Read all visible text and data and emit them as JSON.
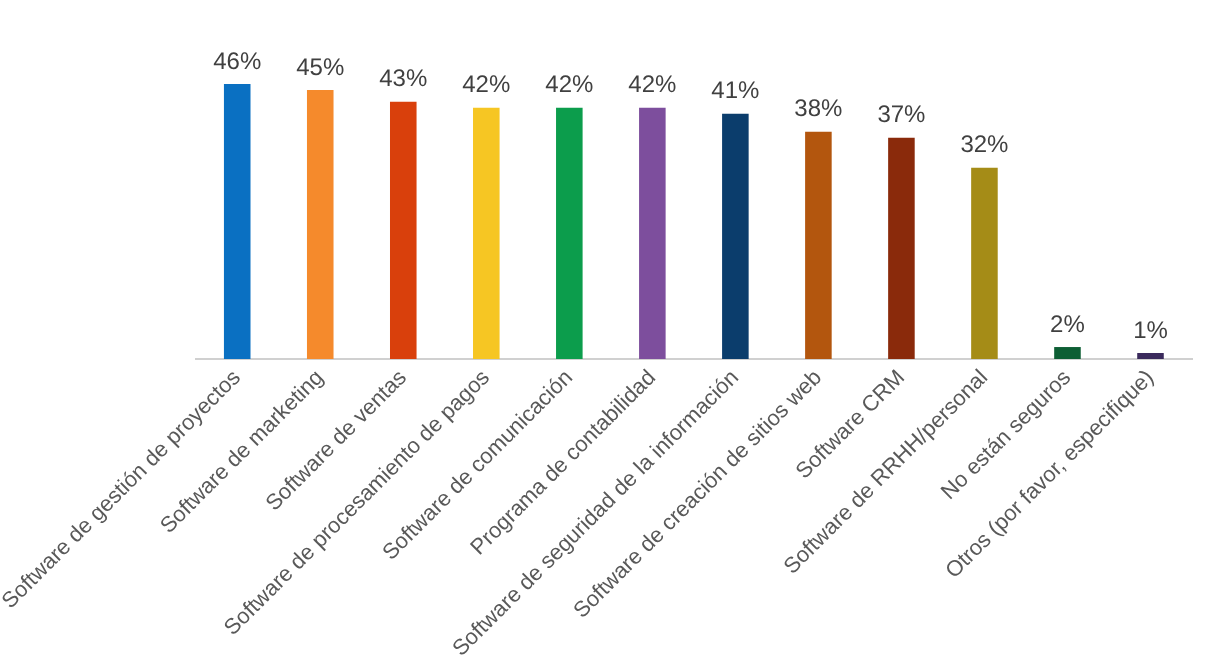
{
  "chart_data": {
    "type": "bar",
    "categories": [
      "Software de gestión de proyectos",
      "Software de marketing",
      "Software de ventas",
      "Software de procesamiento de pagos",
      "Software de comunicación",
      "Programa de contabilidad",
      "Software de seguridad de la información",
      "Software de creación de sitios web",
      "Software CRM",
      "Software de RRHH/personal",
      "No están seguros",
      "Otros (por favor, especifique)"
    ],
    "values": [
      46,
      45,
      43,
      42,
      42,
      42,
      41,
      38,
      37,
      32,
      2,
      1
    ],
    "value_labels": [
      "46%",
      "45%",
      "43%",
      "42%",
      "42%",
      "42%",
      "41%",
      "38%",
      "37%",
      "32%",
      "2%",
      "1%"
    ],
    "colors": [
      "#0a70c2",
      "#f58a2c",
      "#d9400c",
      "#f6c623",
      "#0c9d4c",
      "#7d4e9d",
      "#0b3d6c",
      "#b3560e",
      "#8a2a0b",
      "#a58c17",
      "#0d5e34",
      "#3a2a5c"
    ],
    "grid": false,
    "legend": false
  }
}
